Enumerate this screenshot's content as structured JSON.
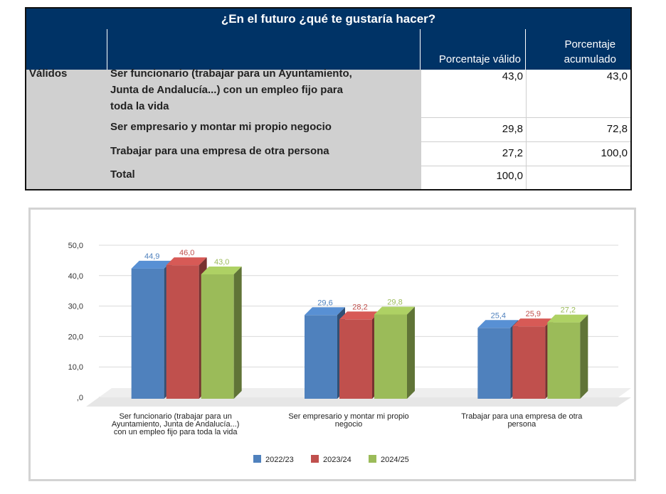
{
  "table": {
    "title": "¿En el futuro ¿qué te gustaría hacer?",
    "headers": {
      "col1": "Porcentaje válido",
      "col2_line1": "Porcentaje",
      "col2_line2": "acumulado"
    },
    "group_label": "Válidos",
    "rows": [
      {
        "label_lines": [
          "Ser funcionario (trabajar para un Ayuntamiento,",
          "Junta de Andalucía...) con un empleo fijo para",
          "toda la vida"
        ],
        "valid": "43,0",
        "cumulative": "43,0"
      },
      {
        "label_lines": [
          "Ser empresario y montar mi propio negocio"
        ],
        "valid": "29,8",
        "cumulative": "72,8"
      },
      {
        "label_lines": [
          "Trabajar para una empresa de otra persona"
        ],
        "valid": "27,2",
        "cumulative": "100,0"
      },
      {
        "label_lines": [
          "Total"
        ],
        "valid": "100,0",
        "cumulative": ""
      }
    ]
  },
  "chart_data": {
    "type": "bar",
    "categories": [
      [
        "Ser funcionario (trabajar para un",
        "Ayuntamiento, Junta de Andalucía...)",
        "con un empleo fijo para toda la vida"
      ],
      [
        "Ser empresario y montar mi propio",
        "negocio"
      ],
      [
        "Trabajar para una empresa de otra",
        "persona"
      ]
    ],
    "series": [
      {
        "name": "2022/23",
        "values": [
          44.9,
          29.6,
          25.4
        ],
        "labels": [
          "44,9",
          "29,6",
          "25,4"
        ],
        "color": "#4f81bd"
      },
      {
        "name": "2023/24",
        "values": [
          46.0,
          28.2,
          25.9
        ],
        "labels": [
          "46,0",
          "28,2",
          "25,9"
        ],
        "color": "#c0504d"
      },
      {
        "name": "2024/25",
        "values": [
          43.0,
          29.8,
          27.2
        ],
        "labels": [
          "43,0",
          "29,8",
          "27,2"
        ],
        "color": "#9bbb59"
      }
    ],
    "ylim": [
      0,
      50
    ],
    "yticks": [
      {
        "value": 0,
        "label": ",0"
      },
      {
        "value": 10,
        "label": "10,0"
      },
      {
        "value": 20,
        "label": "20,0"
      },
      {
        "value": 30,
        "label": "30,0"
      },
      {
        "value": 40,
        "label": "40,0"
      },
      {
        "value": 50,
        "label": "50,0"
      }
    ],
    "grid": true,
    "legend": "bottom",
    "style": "3d"
  }
}
